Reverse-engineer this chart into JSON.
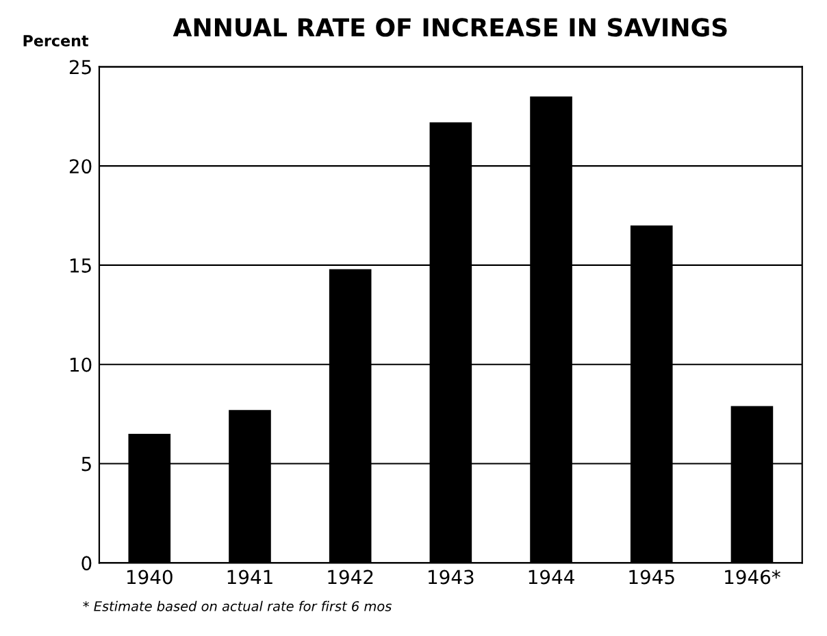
{
  "chart_data": {
    "type": "bar",
    "title": "ANNUAL RATE OF INCREASE IN SAVINGS",
    "ylabel": "Percent",
    "categories": [
      "1940",
      "1941",
      "1942",
      "1943",
      "1944",
      "1945",
      "1946*"
    ],
    "values": [
      6.5,
      7.7,
      14.8,
      22.2,
      23.5,
      17.0,
      7.9
    ],
    "color": "#000000",
    "ylim": [
      0,
      25
    ],
    "yticks": [
      0,
      5,
      10,
      15,
      20,
      25
    ],
    "grid": "y",
    "annotations": [
      "* Estimate based on actual rate for first 6 mos"
    ]
  }
}
